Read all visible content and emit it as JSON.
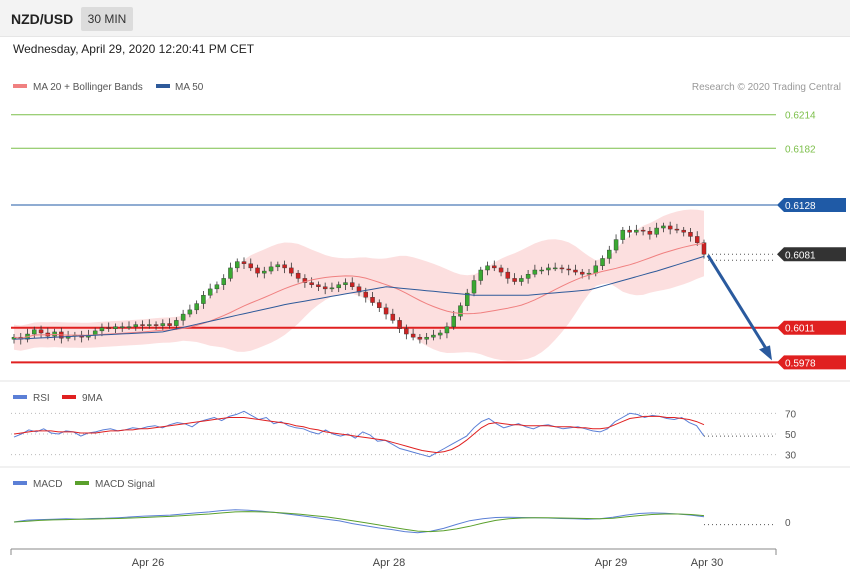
{
  "header": {
    "symbol": "NZD/USD",
    "timeframe": "30 MIN",
    "datetime": "Wednesday, April 29, 2020 12:20:41 PM CET"
  },
  "colors": {
    "ma20": "#f08080",
    "ma50": "#2e5a9a",
    "up": "#3aa832",
    "down": "#cc2222",
    "bands": "#fcd9d9",
    "resistance_green": "#7cbf4a",
    "level_blue": "#1f5aa6",
    "support_red": "#e02020",
    "current": "#333333",
    "rsi": "#5b7fd6",
    "rsi_ma": "#e02020",
    "macd": "#5b7fd6",
    "macd_signal": "#5aa02c",
    "arrow": "#2a5a9e"
  },
  "chart_data": [
    {
      "type": "candlestick",
      "legend": [
        {
          "name": "MA 20 + Bollinger Bands",
          "color": "#f08080"
        },
        {
          "name": "MA 50",
          "color": "#2e5a9a"
        }
      ],
      "copyright": "Research © 2020 Trading Central",
      "ylim": [
        0.5965,
        0.6228
      ],
      "levels": [
        {
          "value": 0.6214,
          "label": "0.6214",
          "kind": "resistance-green"
        },
        {
          "value": 0.6182,
          "label": "0.6182",
          "kind": "resistance-green"
        },
        {
          "value": 0.6128,
          "label": "0.6128",
          "kind": "pivot-blue"
        },
        {
          "value": 0.6081,
          "label": "0.6081",
          "kind": "current"
        },
        {
          "value": 0.6011,
          "label": "0.6011",
          "kind": "support-red"
        },
        {
          "value": 0.5978,
          "label": "0.5978",
          "kind": "support-red"
        }
      ],
      "close": [
        0.6002,
        0.6,
        0.6005,
        0.6009,
        0.6006,
        0.6003,
        0.6007,
        0.6001,
        0.6003,
        0.6004,
        0.6002,
        0.6004,
        0.6008,
        0.6011,
        0.601,
        0.6012,
        0.6012,
        0.6012,
        0.6014,
        0.6013,
        0.6014,
        0.6013,
        0.6015,
        0.6013,
        0.6018,
        0.6024,
        0.6028,
        0.6034,
        0.6042,
        0.6048,
        0.6052,
        0.6058,
        0.6068,
        0.6074,
        0.6072,
        0.6068,
        0.6063,
        0.6065,
        0.6069,
        0.6071,
        0.6068,
        0.6063,
        0.6058,
        0.6054,
        0.6052,
        0.605,
        0.6048,
        0.6049,
        0.6052,
        0.6054,
        0.605,
        0.6045,
        0.604,
        0.6035,
        0.603,
        0.6024,
        0.6018,
        0.601,
        0.6005,
        0.6002,
        0.6,
        0.6002,
        0.6004,
        0.6006,
        0.6012,
        0.6022,
        0.6032,
        0.6044,
        0.6056,
        0.6066,
        0.607,
        0.6068,
        0.6064,
        0.6058,
        0.6055,
        0.6058,
        0.6062,
        0.6066,
        0.6066,
        0.6068,
        0.6068,
        0.6067,
        0.6066,
        0.6064,
        0.6062,
        0.6063,
        0.607,
        0.6077,
        0.6085,
        0.6095,
        0.6104,
        0.6102,
        0.6104,
        0.6103,
        0.61,
        0.6106,
        0.6108,
        0.6105,
        0.6104,
        0.6102,
        0.6098,
        0.6092,
        0.6081
      ],
      "ma50_anchors": [
        [
          0,
          0.6
        ],
        [
          22,
          0.6007
        ],
        [
          40,
          0.6033
        ],
        [
          55,
          0.605
        ],
        [
          68,
          0.6042
        ],
        [
          76,
          0.6042
        ],
        [
          85,
          0.6047
        ],
        [
          95,
          0.6065
        ],
        [
          103,
          0.6081
        ]
      ],
      "forecast_arrow": {
        "from": 0.608,
        "to": 0.5978
      }
    },
    {
      "type": "line",
      "legend": [
        {
          "name": "RSI",
          "color": "#5b7fd6"
        },
        {
          "name": "9MA",
          "color": "#e02020"
        }
      ],
      "ylim": [
        20,
        80
      ],
      "ticks": [
        70,
        50,
        30
      ],
      "series": [
        {
          "name": "RSI",
          "values": [
            47,
            50,
            54,
            52,
            55,
            51,
            50,
            53,
            52,
            48,
            51,
            52,
            54,
            55,
            53,
            54,
            56,
            55,
            57,
            58,
            56,
            59,
            61,
            60,
            57,
            62,
            64,
            66,
            63,
            67,
            69,
            72,
            68,
            64,
            66,
            60,
            62,
            58,
            56,
            55,
            52,
            50,
            54,
            50,
            48,
            50,
            46,
            52,
            49,
            43,
            44,
            40,
            36,
            34,
            32,
            30,
            28,
            32,
            36,
            40,
            44,
            48,
            56,
            62,
            65,
            60,
            56,
            58,
            60,
            57,
            55,
            58,
            59,
            57,
            55,
            56,
            57,
            55,
            53,
            52,
            55,
            62,
            66,
            70,
            69,
            66,
            68,
            67,
            65,
            64,
            66,
            61,
            58,
            48
          ]
        },
        {
          "name": "9MA",
          "values": [
            50,
            51,
            52,
            53,
            53,
            53,
            52,
            52,
            52,
            51,
            51,
            51,
            52,
            53,
            53,
            54,
            54,
            55,
            55,
            56,
            57,
            58,
            59,
            60,
            61,
            62,
            63,
            64,
            65,
            66,
            66,
            66,
            65,
            64,
            63,
            62,
            61,
            60,
            58,
            57,
            55,
            54,
            52,
            51,
            50,
            49,
            48,
            47,
            46,
            45,
            44,
            42,
            40,
            38,
            36,
            34,
            33,
            32,
            33,
            35,
            39,
            44,
            50,
            56,
            60,
            61,
            60,
            59,
            59,
            58,
            58,
            58,
            58,
            57,
            57,
            57,
            56,
            56,
            55,
            55,
            56,
            59,
            62,
            65,
            66,
            67,
            67,
            67,
            66,
            66,
            65,
            64,
            62,
            59
          ]
        }
      ]
    },
    {
      "type": "line",
      "legend": [
        {
          "name": "MACD",
          "color": "#5b7fd6"
        },
        {
          "name": "MACD Signal",
          "color": "#5aa02c"
        }
      ],
      "ylim": [
        -0.0012,
        0.0012
      ],
      "ticks": [
        0
      ],
      "tick_labels": [
        "0"
      ],
      "x_ticks": [
        "Apr 26",
        "Apr 28",
        "Apr 29",
        "Apr 30"
      ],
      "series": [
        {
          "name": "MACD",
          "values": [
            0.0,
            7e-05,
            9e-05,
            0.0001,
            0.00012,
            0.00011,
            0.00013,
            0.00014,
            0.00016,
            0.00019,
            0.00022,
            0.00024,
            0.00026,
            0.0003,
            0.00034,
            0.00038,
            0.00043,
            0.00046,
            0.00044,
            0.00041,
            0.00036,
            0.0003,
            0.00024,
            0.00018,
            0.0001,
            4e-05,
            -6e-05,
            -0.00014,
            -0.00022,
            -0.00028,
            -0.00036,
            -0.0004,
            -0.00035,
            -0.00024,
            -9e-05,
            5e-05,
            0.00012,
            0.00017,
            0.00018,
            0.00017,
            0.00016,
            0.00015,
            0.00013,
            0.00012,
            0.0001,
            0.00012,
            0.00018,
            0.00026,
            0.00032,
            0.00034,
            0.00033,
            0.0003,
            0.00026,
            0.0002
          ]
        },
        {
          "name": "MACD Signal",
          "values": [
            0.0,
            3e-05,
            6e-05,
            8e-05,
            9e-05,
            0.0001,
            0.00011,
            0.00012,
            0.00013,
            0.00015,
            0.00017,
            0.00019,
            0.00021,
            0.00024,
            0.00027,
            0.0003,
            0.00034,
            0.00038,
            0.00039,
            0.00038,
            0.00036,
            0.00033,
            0.00029,
            0.00024,
            0.00019,
            0.00012,
            5e-05,
            -3e-05,
            -0.00011,
            -0.00019,
            -0.00027,
            -0.00034,
            -0.00036,
            -0.00033,
            -0.00026,
            -0.00016,
            -4e-05,
            6e-05,
            0.00012,
            0.00015,
            0.00016,
            0.00016,
            0.00015,
            0.00014,
            0.00013,
            0.00012,
            0.00014,
            0.00019,
            0.00024,
            0.00028,
            0.0003,
            0.0003,
            0.00028,
            0.00024
          ]
        }
      ]
    }
  ]
}
